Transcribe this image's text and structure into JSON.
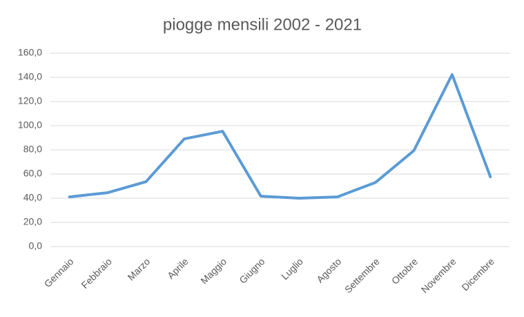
{
  "chart_data": {
    "type": "line",
    "title": "piogge mensili 2002 - 2021",
    "categories": [
      "Gennaio",
      "Febbraio",
      "Marzo",
      "Aprile",
      "Maggio",
      "Giugno",
      "Luglio",
      "Agosto",
      "Settembre",
      "Ottobre",
      "Novembre",
      "Dicembre"
    ],
    "series": [
      {
        "name": "piogge",
        "color": "#5b9bd5",
        "values": [
          41.1,
          44.6,
          53.7,
          89.1,
          95.4,
          41.7,
          40.0,
          41.1,
          53.1,
          79.4,
          142.3,
          57.7
        ]
      }
    ],
    "ylim": [
      0,
      160
    ],
    "yticks": [
      {
        "value": 0,
        "label": "0,0"
      },
      {
        "value": 20,
        "label": "20,0"
      },
      {
        "value": 40,
        "label": "40,0"
      },
      {
        "value": 60,
        "label": "60,0"
      },
      {
        "value": 80,
        "label": "80,0"
      },
      {
        "value": 100,
        "label": "100,0"
      },
      {
        "value": 120,
        "label": "120,0"
      },
      {
        "value": 140,
        "label": "140,0"
      },
      {
        "value": 160,
        "label": "160,0"
      }
    ],
    "grid": true
  }
}
